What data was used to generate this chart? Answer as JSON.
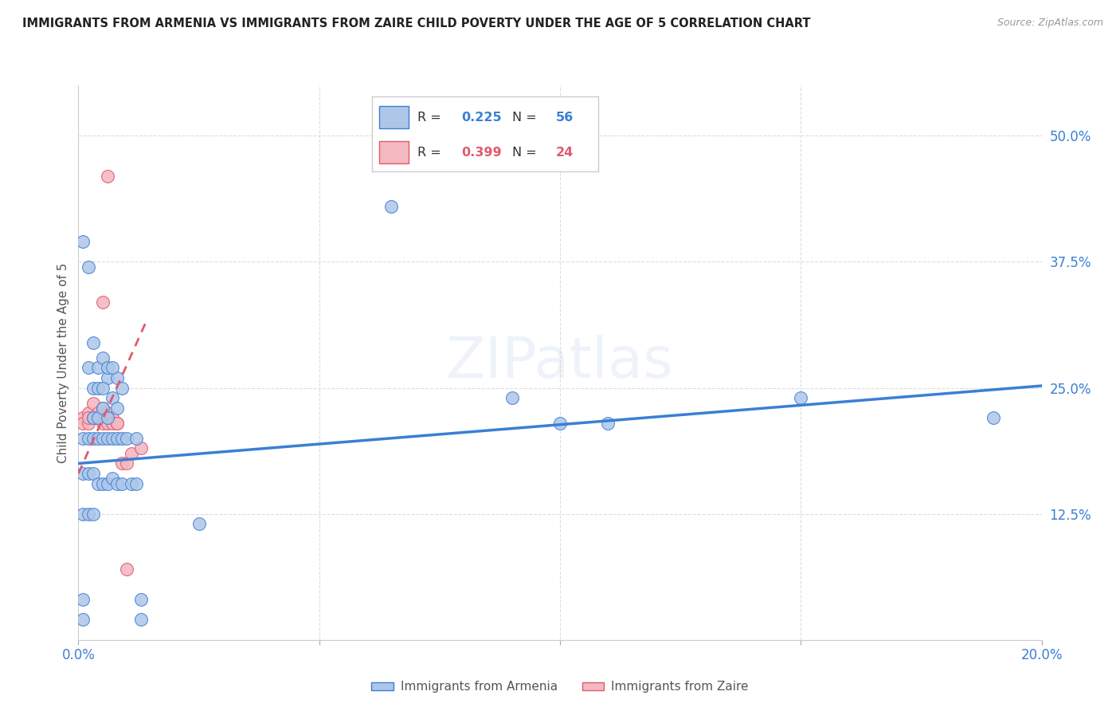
{
  "title": "IMMIGRANTS FROM ARMENIA VS IMMIGRANTS FROM ZAIRE CHILD POVERTY UNDER THE AGE OF 5 CORRELATION CHART",
  "source": "Source: ZipAtlas.com",
  "ylabel": "Child Poverty Under the Age of 5",
  "r_armenia": 0.225,
  "n_armenia": 56,
  "r_zaire": 0.399,
  "n_zaire": 24,
  "legend_armenia": "Immigrants from Armenia",
  "legend_zaire": "Immigrants from Zaire",
  "xlim": [
    0.0,
    0.2
  ],
  "ylim": [
    0.0,
    0.55
  ],
  "background": "#ffffff",
  "armenia_color": "#aec6e8",
  "zaire_color": "#f4b8c1",
  "line_armenia_color": "#3a7fd5",
  "line_zaire_color": "#e05a6d",
  "armenia_scatter": [
    [
      0.001,
      0.395
    ],
    [
      0.002,
      0.37
    ],
    [
      0.003,
      0.295
    ],
    [
      0.065,
      0.43
    ],
    [
      0.002,
      0.27
    ],
    [
      0.004,
      0.27
    ],
    [
      0.005,
      0.28
    ],
    [
      0.003,
      0.25
    ],
    [
      0.006,
      0.26
    ],
    [
      0.008,
      0.26
    ],
    [
      0.004,
      0.25
    ],
    [
      0.005,
      0.25
    ],
    [
      0.009,
      0.25
    ],
    [
      0.006,
      0.27
    ],
    [
      0.007,
      0.27
    ],
    [
      0.003,
      0.22
    ],
    [
      0.004,
      0.22
    ],
    [
      0.005,
      0.23
    ],
    [
      0.006,
      0.22
    ],
    [
      0.007,
      0.24
    ],
    [
      0.008,
      0.23
    ],
    [
      0.09,
      0.24
    ],
    [
      0.15,
      0.24
    ],
    [
      0.1,
      0.215
    ],
    [
      0.11,
      0.215
    ],
    [
      0.001,
      0.2
    ],
    [
      0.002,
      0.2
    ],
    [
      0.003,
      0.2
    ],
    [
      0.004,
      0.2
    ],
    [
      0.005,
      0.2
    ],
    [
      0.006,
      0.2
    ],
    [
      0.007,
      0.2
    ],
    [
      0.008,
      0.2
    ],
    [
      0.009,
      0.2
    ],
    [
      0.01,
      0.2
    ],
    [
      0.012,
      0.2
    ],
    [
      0.19,
      0.22
    ],
    [
      0.001,
      0.165
    ],
    [
      0.002,
      0.165
    ],
    [
      0.003,
      0.165
    ],
    [
      0.004,
      0.155
    ],
    [
      0.005,
      0.155
    ],
    [
      0.006,
      0.155
    ],
    [
      0.007,
      0.16
    ],
    [
      0.008,
      0.155
    ],
    [
      0.009,
      0.155
    ],
    [
      0.011,
      0.155
    ],
    [
      0.012,
      0.155
    ],
    [
      0.001,
      0.125
    ],
    [
      0.002,
      0.125
    ],
    [
      0.003,
      0.125
    ],
    [
      0.025,
      0.115
    ],
    [
      0.001,
      0.04
    ],
    [
      0.013,
      0.04
    ],
    [
      0.001,
      0.02
    ],
    [
      0.013,
      0.02
    ]
  ],
  "zaire_scatter": [
    [
      0.001,
      0.22
    ],
    [
      0.001,
      0.215
    ],
    [
      0.002,
      0.225
    ],
    [
      0.002,
      0.215
    ],
    [
      0.002,
      0.22
    ],
    [
      0.003,
      0.22
    ],
    [
      0.003,
      0.235
    ],
    [
      0.004,
      0.22
    ],
    [
      0.004,
      0.225
    ],
    [
      0.005,
      0.215
    ],
    [
      0.005,
      0.23
    ],
    [
      0.006,
      0.225
    ],
    [
      0.006,
      0.215
    ],
    [
      0.007,
      0.22
    ],
    [
      0.007,
      0.215
    ],
    [
      0.008,
      0.215
    ],
    [
      0.008,
      0.215
    ],
    [
      0.009,
      0.175
    ],
    [
      0.01,
      0.175
    ],
    [
      0.011,
      0.185
    ],
    [
      0.013,
      0.19
    ],
    [
      0.006,
      0.46
    ],
    [
      0.01,
      0.07
    ],
    [
      0.005,
      0.335
    ]
  ],
  "arm_line_x": [
    0.0,
    0.2
  ],
  "arm_line_y": [
    0.175,
    0.252
  ],
  "zaire_line_x": [
    0.0,
    0.014
  ],
  "zaire_line_y": [
    0.165,
    0.315
  ]
}
